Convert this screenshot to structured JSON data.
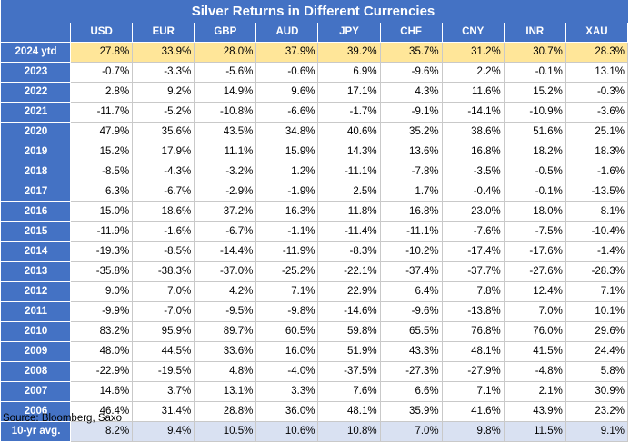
{
  "title": "Silver Returns in Different Currencies",
  "columns": [
    "",
    "USD",
    "EUR",
    "GBP",
    "AUD",
    "JPY",
    "CHF",
    "CNY",
    "INR",
    "XAU"
  ],
  "rows": [
    {
      "label": "2024 ytd",
      "kind": "ytd",
      "values": [
        "27.8%",
        "33.9%",
        "28.0%",
        "37.9%",
        "39.2%",
        "35.7%",
        "31.2%",
        "30.7%",
        "28.3%"
      ]
    },
    {
      "label": "2023",
      "kind": "year",
      "values": [
        "-0.7%",
        "-3.3%",
        "-5.6%",
        "-0.6%",
        "6.9%",
        "-9.6%",
        "2.2%",
        "-0.1%",
        "13.1%"
      ]
    },
    {
      "label": "2022",
      "kind": "year",
      "values": [
        "2.8%",
        "9.2%",
        "14.9%",
        "9.6%",
        "17.1%",
        "4.3%",
        "11.6%",
        "15.2%",
        "-0.3%"
      ]
    },
    {
      "label": "2021",
      "kind": "year",
      "values": [
        "-11.7%",
        "-5.2%",
        "-10.8%",
        "-6.6%",
        "-1.7%",
        "-9.1%",
        "-14.1%",
        "-10.9%",
        "-3.6%"
      ]
    },
    {
      "label": "2020",
      "kind": "year",
      "values": [
        "47.9%",
        "35.6%",
        "43.5%",
        "34.8%",
        "40.6%",
        "35.2%",
        "38.6%",
        "51.6%",
        "25.1%"
      ]
    },
    {
      "label": "2019",
      "kind": "year",
      "values": [
        "15.2%",
        "17.9%",
        "11.1%",
        "15.9%",
        "14.3%",
        "13.6%",
        "16.8%",
        "18.2%",
        "18.3%"
      ]
    },
    {
      "label": "2018",
      "kind": "year",
      "values": [
        "-8.5%",
        "-4.3%",
        "-3.2%",
        "1.2%",
        "-11.1%",
        "-7.8%",
        "-3.5%",
        "-0.5%",
        "-1.6%"
      ]
    },
    {
      "label": "2017",
      "kind": "year",
      "values": [
        "6.3%",
        "-6.7%",
        "-2.9%",
        "-1.9%",
        "2.5%",
        "1.7%",
        "-0.4%",
        "-0.1%",
        "-13.5%"
      ]
    },
    {
      "label": "2016",
      "kind": "year",
      "values": [
        "15.0%",
        "18.6%",
        "37.2%",
        "16.3%",
        "11.8%",
        "16.8%",
        "23.0%",
        "18.0%",
        "8.1%"
      ]
    },
    {
      "label": "2015",
      "kind": "year",
      "values": [
        "-11.9%",
        "-1.6%",
        "-6.7%",
        "-1.1%",
        "-11.4%",
        "-11.1%",
        "-7.6%",
        "-7.5%",
        "-10.4%"
      ]
    },
    {
      "label": "2014",
      "kind": "year",
      "values": [
        "-19.3%",
        "-8.5%",
        "-14.4%",
        "-11.9%",
        "-8.3%",
        "-10.2%",
        "-17.4%",
        "-17.6%",
        "-1.4%"
      ]
    },
    {
      "label": "2013",
      "kind": "year",
      "values": [
        "-35.8%",
        "-38.3%",
        "-37.0%",
        "-25.2%",
        "-22.1%",
        "-37.4%",
        "-37.7%",
        "-27.6%",
        "-28.3%"
      ]
    },
    {
      "label": "2012",
      "kind": "year",
      "values": [
        "9.0%",
        "7.0%",
        "4.2%",
        "7.1%",
        "22.9%",
        "6.4%",
        "7.8%",
        "12.4%",
        "7.1%"
      ]
    },
    {
      "label": "2011",
      "kind": "year",
      "values": [
        "-9.9%",
        "-7.0%",
        "-9.5%",
        "-9.8%",
        "-14.6%",
        "-9.6%",
        "-13.8%",
        "7.0%",
        "10.1%"
      ]
    },
    {
      "label": "2010",
      "kind": "year",
      "values": [
        "83.2%",
        "95.9%",
        "89.7%",
        "60.5%",
        "59.8%",
        "65.5%",
        "76.8%",
        "76.0%",
        "29.6%"
      ]
    },
    {
      "label": "2009",
      "kind": "year",
      "values": [
        "48.0%",
        "44.5%",
        "33.6%",
        "16.0%",
        "51.9%",
        "43.3%",
        "48.1%",
        "41.5%",
        "24.4%"
      ]
    },
    {
      "label": "2008",
      "kind": "year",
      "values": [
        "-22.9%",
        "-19.5%",
        "4.8%",
        "-4.0%",
        "-37.5%",
        "-27.3%",
        "-27.9%",
        "-4.8%",
        "5.8%"
      ]
    },
    {
      "label": "2007",
      "kind": "year",
      "values": [
        "14.6%",
        "3.7%",
        "13.1%",
        "3.3%",
        "7.6%",
        "6.6%",
        "7.1%",
        "2.1%",
        "30.9%"
      ]
    },
    {
      "label": "2006",
      "kind": "year",
      "values": [
        "46.4%",
        "31.4%",
        "28.8%",
        "36.0%",
        "48.1%",
        "35.9%",
        "41.6%",
        "43.9%",
        "23.2%"
      ]
    },
    {
      "label": "10-yr avg.",
      "kind": "avg",
      "values": [
        "8.2%",
        "9.4%",
        "10.5%",
        "10.6%",
        "10.8%",
        "7.0%",
        "9.8%",
        "11.5%",
        "9.1%"
      ]
    }
  ],
  "source": "Source: Bloomberg, Saxo",
  "colors": {
    "header_bg": "#4472c4",
    "header_text": "#ffffff",
    "ytd_highlight": "#ffe699",
    "avg_highlight": "#d9e1f2",
    "grid": "#c9c9c9"
  }
}
